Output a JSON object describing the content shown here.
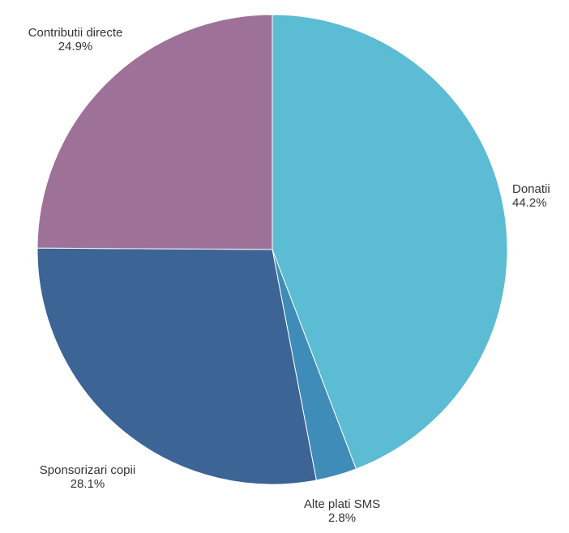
{
  "chart_data": {
    "type": "pie",
    "title": "",
    "slices": [
      {
        "label": "Donatii",
        "value": 44.2,
        "display": "44.2%",
        "color": "#5bbcd3"
      },
      {
        "label": "Alte plati SMS",
        "value": 2.8,
        "display": "2.8%",
        "color": "#3f8cb8"
      },
      {
        "label": "Sponsorizari copii",
        "value": 28.1,
        "display": "28.1%",
        "color": "#3c6495"
      },
      {
        "label": "Contributii directe",
        "value": 24.9,
        "display": "24.9%",
        "color": "#9e7199"
      }
    ],
    "start_angle": "12 o'clock",
    "direction": "clockwise",
    "legend": "none",
    "label_position": "outside"
  }
}
